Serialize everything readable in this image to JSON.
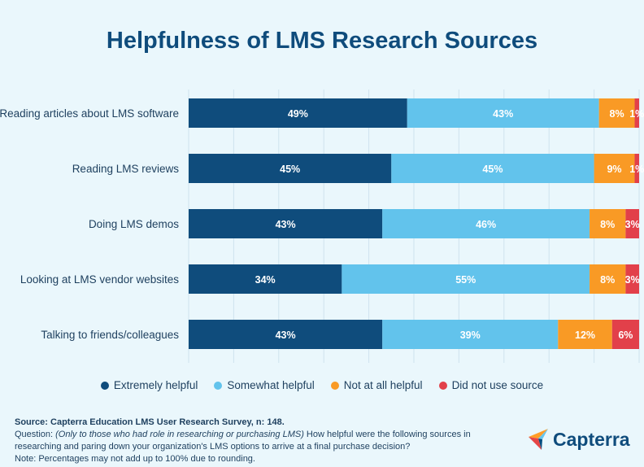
{
  "chart_data": {
    "type": "bar",
    "orientation": "horizontal",
    "stacked": true,
    "title": "Helpfulness of LMS Research Sources",
    "categories": [
      "Reading articles about LMS software",
      "Reading LMS reviews",
      "Doing LMS demos",
      "Looking at LMS vendor websites",
      "Talking to friends/colleagues"
    ],
    "series": [
      {
        "name": "Extremely helpful",
        "color": "#0f4c7c",
        "values": [
          49,
          45,
          43,
          34,
          43
        ]
      },
      {
        "name": "Somewhat helpful",
        "color": "#62c3ec",
        "values": [
          43,
          45,
          46,
          55,
          39
        ]
      },
      {
        "name": "Not at all helpful",
        "color": "#f99a25",
        "values": [
          8,
          9,
          8,
          8,
          12
        ]
      },
      {
        "name": "Did not use source",
        "color": "#e2404a",
        "values": [
          1,
          1,
          3,
          3,
          6
        ]
      }
    ],
    "value_suffix": "%",
    "xlim": [
      0,
      100
    ],
    "grid": true,
    "legend_position": "bottom"
  },
  "footer": {
    "source": "Source: Capterra Education LMS User Research Survey, n: 148.",
    "question_label": "Question: ",
    "question_italic": "(Only to those who had role in researching or purchasing LMS)",
    "question_text": " How helpful were the following sources in researching and paring down your organization's LMS options to arrive at a final purchase decision?",
    "note": "Note: Percentages may not add up to 100% due to rounding."
  },
  "logo": {
    "text": "Capterra"
  }
}
